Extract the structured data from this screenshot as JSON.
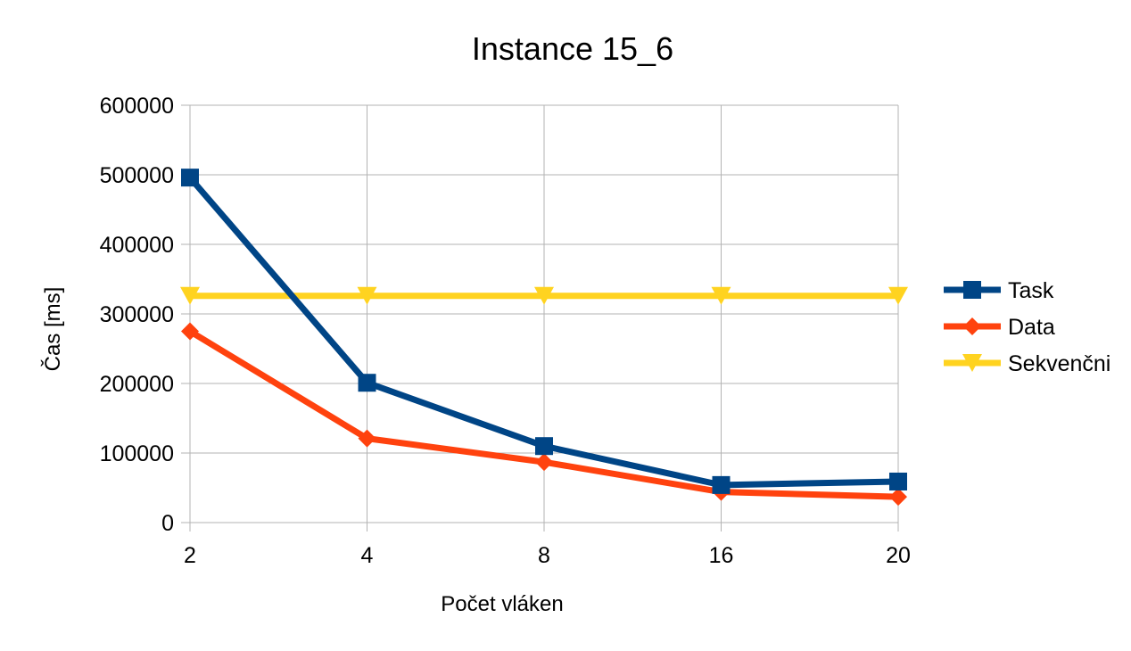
{
  "chart_data": {
    "type": "line",
    "title": "Instance 15_6",
    "xlabel": "Počet vláken",
    "ylabel": "Čas [ms]",
    "categories": [
      "2",
      "4",
      "8",
      "16",
      "20"
    ],
    "ylim": [
      0,
      600000
    ],
    "yticks": [
      0,
      100000,
      200000,
      300000,
      400000,
      500000,
      600000
    ],
    "grid": true,
    "legend_position": "right",
    "series": [
      {
        "name": "Task",
        "values": [
          496000,
          201000,
          110000,
          54000,
          59000
        ],
        "color": "#004586",
        "marker": "square"
      },
      {
        "name": "Data",
        "values": [
          275000,
          121000,
          87000,
          44000,
          37000
        ],
        "color": "#ff420e",
        "marker": "diamond"
      },
      {
        "name": "Sekvenčni",
        "values": [
          326000,
          326000,
          326000,
          326000,
          326000
        ],
        "color": "#ffd320",
        "marker": "triangle-down"
      }
    ]
  }
}
